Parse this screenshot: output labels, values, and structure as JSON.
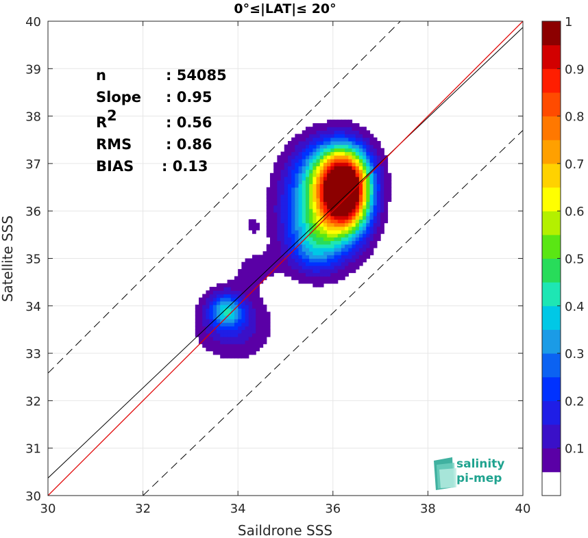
{
  "chart_data": {
    "type": "heatmap",
    "title": "0°≤|LAT|≤ 20°",
    "xlabel": "Saildrone SSS",
    "ylabel": "Satellite SSS",
    "xlim": [
      30,
      40
    ],
    "ylim": [
      30,
      40
    ],
    "xticks": [
      "30",
      "32",
      "34",
      "36",
      "38",
      "40"
    ],
    "yticks": [
      "30",
      "31",
      "32",
      "33",
      "34",
      "35",
      "36",
      "37",
      "38",
      "39",
      "40"
    ],
    "grid": true,
    "stats": [
      {
        "label": "n",
        "value": ": 54085"
      },
      {
        "label": "Slope",
        "value": ": 0.95"
      },
      {
        "label": "R",
        "sup": "2",
        "value": ": 0.56"
      },
      {
        "label": "RMS",
        "value": ": 0.86"
      },
      {
        "label": "BIAS",
        "value": ": 0.13"
      }
    ],
    "lines": {
      "identity": [
        [
          30,
          30
        ],
        [
          40,
          40
        ]
      ],
      "dashed_upper": [
        [
          30,
          32.58
        ],
        [
          37.42,
          40
        ]
      ],
      "dashed_lower": [
        [
          32.0,
          30
        ],
        [
          40,
          37.7
        ]
      ],
      "red_fit": [
        [
          30,
          30
        ],
        [
          40,
          40
        ]
      ],
      "black_fit": [
        [
          30,
          30.37
        ],
        [
          40,
          39.87
        ]
      ]
    },
    "colorbar": {
      "ticks": [
        "0.1",
        "0.2",
        "0.3",
        "0.4",
        "0.5",
        "0.6",
        "0.7",
        "0.8",
        "0.9",
        "1"
      ],
      "range": [
        0,
        1
      ],
      "colors": [
        "#ffffff",
        "#5a00a6",
        "#3a10c8",
        "#1f1ee6",
        "#0032ff",
        "#0b62f2",
        "#1b9be6",
        "#00c8e6",
        "#1ee6b4",
        "#28dc5a",
        "#5ae614",
        "#b4f000",
        "#ffff00",
        "#ffd200",
        "#ffa000",
        "#ff7800",
        "#ff4b00",
        "#ff1e00",
        "#d20000",
        "#8c0000"
      ]
    },
    "density_peaks": [
      {
        "x": 36.27,
        "y": 36.4,
        "sx": 0.35,
        "sy": 0.55,
        "amp": 1.0
      },
      {
        "x": 35.75,
        "y": 36.0,
        "sx": 0.55,
        "sy": 0.7,
        "amp": 0.45
      },
      {
        "x": 36.0,
        "y": 36.9,
        "sx": 0.5,
        "sy": 0.45,
        "amp": 0.3
      },
      {
        "x": 35.6,
        "y": 35.2,
        "sx": 0.35,
        "sy": 0.35,
        "amp": 0.15
      },
      {
        "x": 33.75,
        "y": 33.9,
        "sx": 0.25,
        "sy": 0.25,
        "amp": 0.3
      },
      {
        "x": 33.9,
        "y": 33.6,
        "sx": 0.55,
        "sy": 0.5,
        "amp": 0.14
      },
      {
        "x": 34.35,
        "y": 34.8,
        "sx": 0.35,
        "sy": 0.3,
        "amp": 0.06
      },
      {
        "x": 34.3,
        "y": 35.7,
        "sx": 0.1,
        "sy": 0.15,
        "amp": 0.06
      }
    ]
  },
  "logo": {
    "line1": "salinity",
    "line2": "pi-mep"
  }
}
